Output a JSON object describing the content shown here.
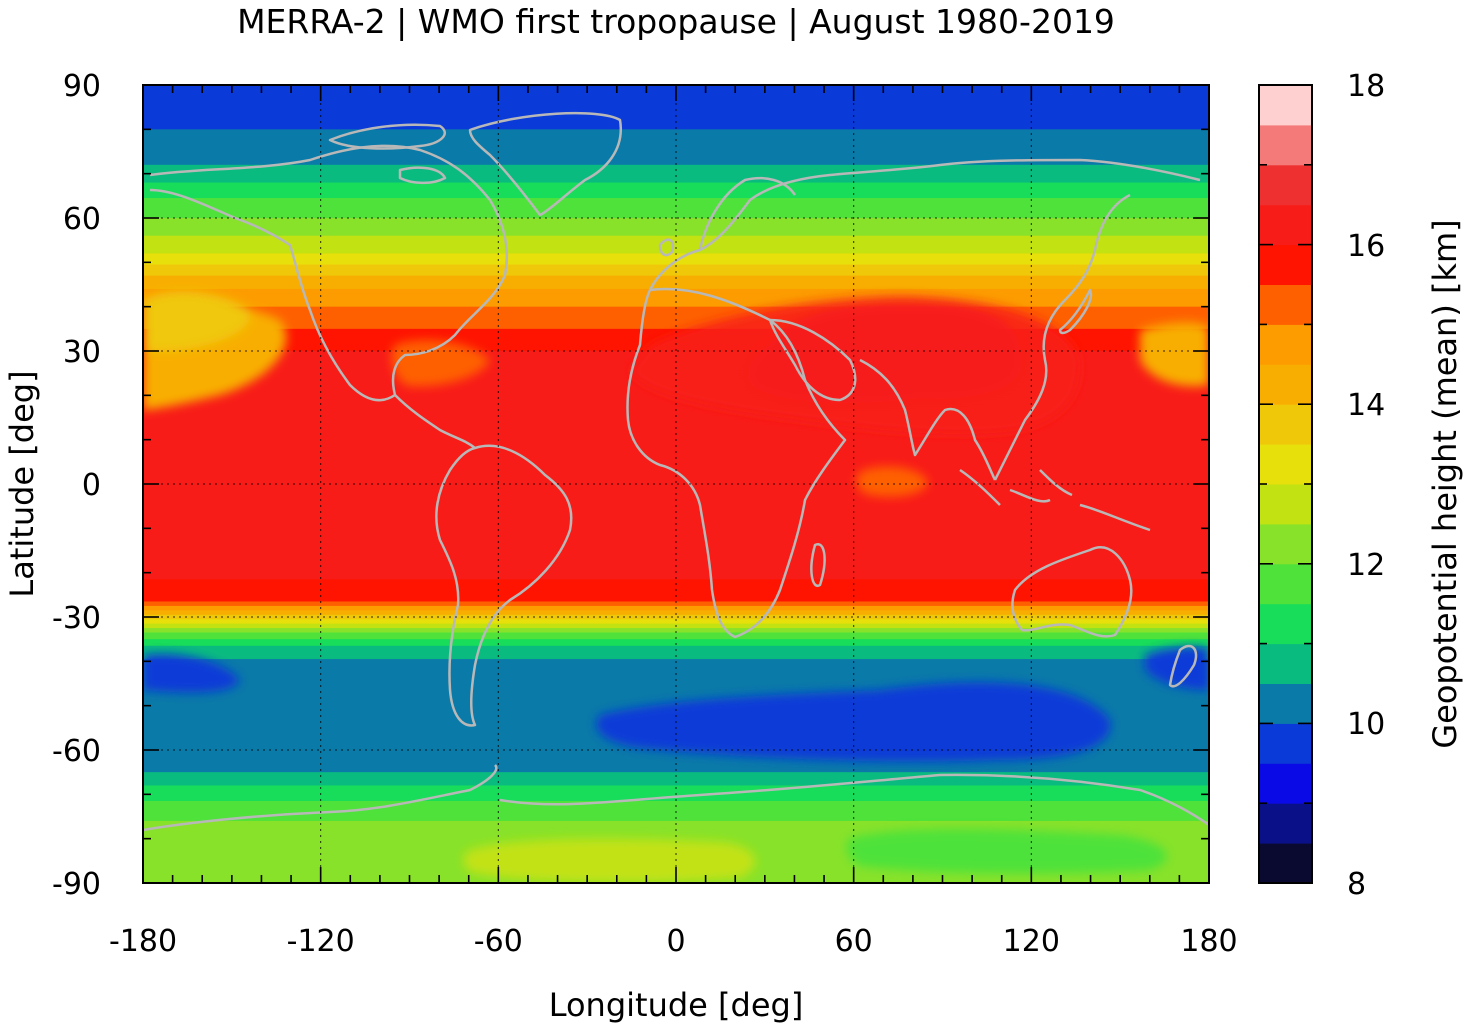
{
  "chart_data": {
    "type": "heatmap",
    "title": "MERRA-2 | WMO first tropopause | August 1980-2019",
    "xlabel": "Longitude [deg]",
    "ylabel": "Latitude [deg]",
    "colorbar_label": "Geopotential height (mean) [km]",
    "xlim": [
      -180,
      180
    ],
    "ylim": [
      -90,
      90
    ],
    "x_ticks": [
      "-180",
      "-120",
      "-60",
      "0",
      "60",
      "120",
      "180"
    ],
    "y_ticks": [
      "90",
      "60",
      "30",
      "0",
      "-30",
      "-60",
      "-90"
    ],
    "colorbar_ticks": [
      "18",
      "16",
      "14",
      "12",
      "10",
      "8"
    ],
    "colorbar_range": [
      8,
      18
    ],
    "colorbar_step": 0.5,
    "colorbar_colors": [
      "#0a0a30",
      "#0a1088",
      "#0a0ae6",
      "#0a3ad8",
      "#0a7aa8",
      "#0abb80",
      "#18dd5a",
      "#4ee23a",
      "#88e22a",
      "#c2e212",
      "#e8e00a",
      "#f0c80a",
      "#f8ae00",
      "#fc9c00",
      "#fe6000",
      "#fe1400",
      "#f81c18",
      "#ee3030",
      "#f47a7a",
      "#ffd0d0"
    ],
    "grid": true,
    "coastlines": true,
    "zonal_profile": {
      "lat": [
        90,
        80,
        72,
        68,
        65,
        62,
        58,
        55,
        52,
        49,
        46,
        42,
        38,
        34,
        30,
        25,
        20,
        10,
        0,
        -10,
        -20,
        -26,
        -28,
        -30,
        -32,
        -34,
        -37,
        -40,
        -45,
        -50,
        -55,
        -60,
        -65,
        -68,
        -72,
        -76,
        -80,
        -85,
        -90
      ],
      "height_km": [
        9.6,
        10.0,
        10.5,
        11.0,
        11.4,
        11.8,
        12.2,
        12.6,
        13.0,
        13.6,
        14.2,
        14.8,
        15.2,
        15.6,
        16.0,
        16.2,
        16.3,
        16.3,
        16.2,
        16.2,
        16.1,
        15.7,
        14.8,
        13.8,
        12.8,
        11.8,
        10.9,
        10.4,
        10.2,
        10.1,
        10.0,
        10.1,
        10.5,
        11.0,
        11.6,
        12.0,
        12.2,
        12.5,
        12.4
      ]
    }
  }
}
